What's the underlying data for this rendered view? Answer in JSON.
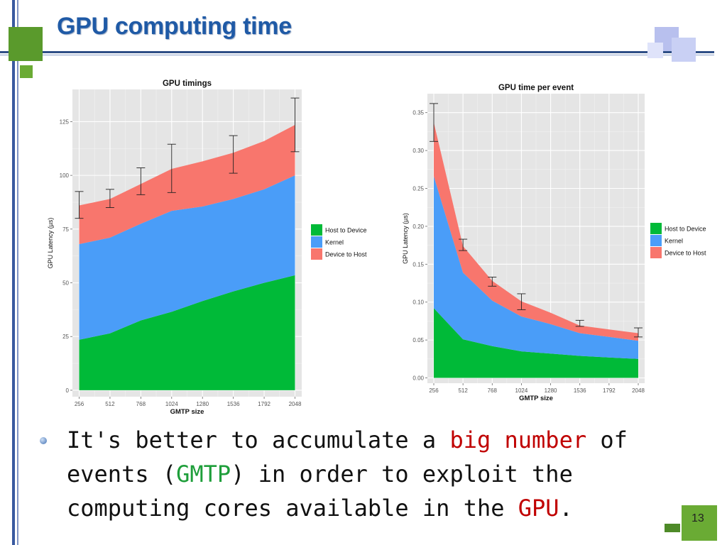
{
  "slide": {
    "title": "GPU computing time",
    "page_number": "13",
    "bullet": {
      "t1": "It's better to accumulate a ",
      "t2": "big number",
      "t3": " of events (",
      "t4": "GMTP",
      "t5": ") in order to exploit the computing cores available in the ",
      "t6": "GPU",
      "t7": "."
    }
  },
  "colors": {
    "title": "#1f5aa6",
    "accent_red": "#c00000",
    "accent_green": "#1e9e3a",
    "host_to_device": "#00ba38",
    "kernel": "#4a9df8",
    "device_to_host": "#f8766d",
    "panel_bg": "#e5e5e5"
  },
  "chart_data": [
    {
      "type": "area",
      "title": "GPU timings",
      "xlabel": "GMTP size",
      "ylabel": "GPU Latency (µs)",
      "x": [
        256,
        512,
        768,
        1024,
        1280,
        1536,
        1792,
        2048
      ],
      "x_ticks": [
        "256",
        "512",
        "768",
        "1024",
        "1280",
        "1536",
        "1792",
        "2048"
      ],
      "y_ticks": [
        "0",
        "25",
        "50",
        "75",
        "100",
        "125"
      ],
      "xlim": [
        200,
        2104
      ],
      "ylim": [
        -3,
        140
      ],
      "stacked": true,
      "grid": true,
      "legend_position": "right",
      "series": [
        {
          "name": "Host to Device",
          "values": [
            23.5,
            26.5,
            32.5,
            36.5,
            41.5,
            46.0,
            50.0,
            53.5
          ]
        },
        {
          "name": "Kernel",
          "values": [
            44.5,
            44.5,
            45.0,
            47.0,
            44.0,
            43.0,
            43.5,
            46.5
          ]
        },
        {
          "name": "Device to Host",
          "values": [
            18.0,
            18.0,
            18.5,
            19.5,
            21.0,
            21.5,
            22.5,
            23.5
          ]
        }
      ],
      "error_bars": {
        "x": [
          256,
          512,
          768,
          1024,
          1536,
          2048
        ],
        "low": [
          80.0,
          85.0,
          91.0,
          92.0,
          101.0,
          111.0
        ],
        "high": [
          92.5,
          93.5,
          103.5,
          114.5,
          118.5,
          136.0
        ]
      }
    },
    {
      "type": "area",
      "title": "GPU time per event",
      "xlabel": "GMTP size",
      "ylabel": "GPU Latency (µs)",
      "x": [
        256,
        512,
        768,
        1024,
        1280,
        1536,
        1792,
        2048
      ],
      "x_ticks": [
        "256",
        "512",
        "768",
        "1024",
        "1280",
        "1536",
        "1792",
        "2048"
      ],
      "y_ticks": [
        "0.00",
        "0.05",
        "0.10",
        "0.15",
        "0.20",
        "0.25",
        "0.30",
        "0.35"
      ],
      "xlim": [
        200,
        2104
      ],
      "ylim": [
        -0.007,
        0.375
      ],
      "stacked": true,
      "grid": true,
      "legend_position": "right",
      "series": [
        {
          "name": "Host to Device",
          "values": [
            0.092,
            0.051,
            0.042,
            0.035,
            0.032,
            0.029,
            0.027,
            0.025
          ]
        },
        {
          "name": "Kernel",
          "values": [
            0.174,
            0.088,
            0.06,
            0.046,
            0.039,
            0.03,
            0.027,
            0.024
          ]
        },
        {
          "name": "Device to Host",
          "values": [
            0.071,
            0.035,
            0.026,
            0.02,
            0.015,
            0.01,
            0.01,
            0.01
          ]
        }
      ],
      "error_bars": {
        "x": [
          256,
          512,
          768,
          1024,
          1536,
          2048
        ],
        "low": [
          0.312,
          0.168,
          0.121,
          0.09,
          0.068,
          0.054
        ],
        "high": [
          0.362,
          0.183,
          0.133,
          0.111,
          0.076,
          0.066
        ]
      }
    }
  ]
}
